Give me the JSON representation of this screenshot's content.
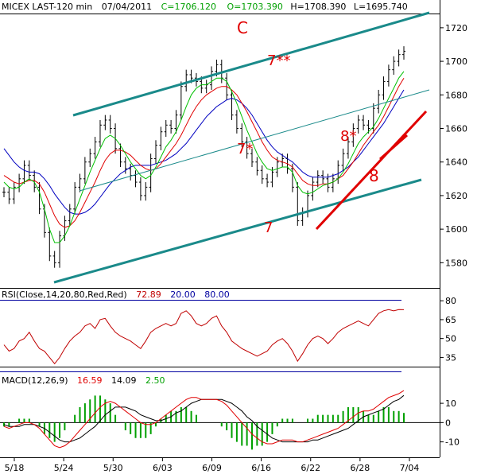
{
  "header": {
    "symbol": "MICEX LAST-120 min",
    "date": "07/04/2011",
    "close": "C=1706.120",
    "open": "O=1703.390",
    "high": "H=1708.390",
    "low": "L=1695.740"
  },
  "rsi_header": {
    "name": "RSI(Close,14,20,80,Red,Red)",
    "value": "72.89",
    "lower": "20.00",
    "upper": "80.00"
  },
  "macd_header": {
    "name": "MACD(12,26,9)",
    "macd": "16.59",
    "signal": "14.09",
    "hist": "2.50"
  },
  "annotations": {
    "c": "C",
    "w7ss": "7**",
    "w7s": "7*",
    "w7": "7",
    "w8s": "8*",
    "w8": "8"
  },
  "colors": {
    "price": "#000000",
    "ma_green": "#00c000",
    "ma_red": "#e00000",
    "ma_blue": "#0000c0",
    "channel": "#1a8a8a",
    "trend_red": "#e00000",
    "rsi_line": "#c00000",
    "rsi_ref": "#0000a0",
    "macd_line": "#000000",
    "macd_signal": "#e00000",
    "macd_hist": "#00a000"
  },
  "chart_data": [
    {
      "type": "line",
      "panel": "price",
      "ylim": [
        1565,
        1728
      ],
      "y_ticks": [
        1580,
        1600,
        1620,
        1640,
        1660,
        1680,
        1700,
        1720
      ],
      "x_labels": [
        "5/18",
        "5/24",
        "5/30",
        "6/03",
        "6/09",
        "6/16",
        "6/22",
        "6/28",
        "7/04"
      ],
      "series": [
        {
          "key": "close",
          "values": [
            1622,
            1618,
            1625,
            1630,
            1638,
            1632,
            1625,
            1612,
            1598,
            1584,
            1580,
            1596,
            1605,
            1612,
            1625,
            1630,
            1640,
            1645,
            1652,
            1662,
            1665,
            1660,
            1648,
            1640,
            1636,
            1632,
            1628,
            1620,
            1625,
            1642,
            1650,
            1658,
            1662,
            1660,
            1668,
            1685,
            1692,
            1690,
            1688,
            1684,
            1686,
            1694,
            1698,
            1690,
            1680,
            1668,
            1660,
            1652,
            1645,
            1640,
            1635,
            1630,
            1628,
            1634,
            1640,
            1642,
            1636,
            1625,
            1605,
            1610,
            1620,
            1628,
            1632,
            1630,
            1625,
            1630,
            1638,
            1645,
            1652,
            1660,
            1665,
            1662,
            1660,
            1672,
            1680,
            1688,
            1695,
            1700,
            1704,
            1706
          ]
        },
        {
          "key": "ma_green",
          "values": [
            1628,
            1625,
            1624,
            1625,
            1628,
            1630,
            1628,
            1622,
            1612,
            1600,
            1592,
            1592,
            1596,
            1602,
            1610,
            1618,
            1626,
            1634,
            1641,
            1648,
            1654,
            1656,
            1654,
            1650,
            1645,
            1640,
            1636,
            1632,
            1630,
            1632,
            1637,
            1643,
            1649,
            1653,
            1658,
            1665,
            1673,
            1680,
            1684,
            1686,
            1686,
            1688,
            1690,
            1690,
            1688,
            1682,
            1675,
            1667,
            1659,
            1652,
            1645,
            1640,
            1636,
            1635,
            1636,
            1637,
            1637,
            1634,
            1626,
            1622,
            1621,
            1622,
            1624,
            1626,
            1627,
            1628,
            1630,
            1634,
            1639,
            1645,
            1651,
            1655,
            1658,
            1661,
            1666,
            1672,
            1678,
            1684,
            1690,
            1694
          ]
        },
        {
          "key": "ma_red",
          "values": [
            1632,
            1630,
            1628,
            1627,
            1628,
            1629,
            1629,
            1627,
            1622,
            1615,
            1608,
            1603,
            1601,
            1602,
            1605,
            1610,
            1616,
            1622,
            1628,
            1635,
            1641,
            1645,
            1647,
            1647,
            1646,
            1644,
            1641,
            1638,
            1636,
            1635,
            1636,
            1639,
            1643,
            1647,
            1651,
            1656,
            1662,
            1668,
            1673,
            1677,
            1680,
            1682,
            1684,
            1685,
            1685,
            1683,
            1680,
            1675,
            1670,
            1664,
            1658,
            1652,
            1647,
            1643,
            1641,
            1640,
            1639,
            1637,
            1633,
            1629,
            1627,
            1626,
            1626,
            1627,
            1627,
            1628,
            1630,
            1632,
            1636,
            1640,
            1645,
            1650,
            1654,
            1658,
            1662,
            1667,
            1673,
            1679,
            1685,
            1690
          ]
        },
        {
          "key": "ma_blue",
          "values": [
            1648,
            1644,
            1640,
            1637,
            1635,
            1634,
            1634,
            1633,
            1630,
            1626,
            1621,
            1617,
            1613,
            1610,
            1609,
            1609,
            1610,
            1612,
            1615,
            1619,
            1623,
            1627,
            1630,
            1633,
            1635,
            1637,
            1638,
            1638,
            1638,
            1638,
            1639,
            1640,
            1641,
            1643,
            1645,
            1648,
            1651,
            1655,
            1659,
            1663,
            1667,
            1670,
            1673,
            1675,
            1677,
            1678,
            1677,
            1675,
            1672,
            1668,
            1663,
            1658,
            1653,
            1649,
            1646,
            1644,
            1642,
            1640,
            1637,
            1634,
            1632,
            1631,
            1631,
            1631,
            1631,
            1632,
            1633,
            1635,
            1637,
            1640,
            1643,
            1647,
            1651,
            1655,
            1659,
            1663,
            1668,
            1673,
            1678,
            1683
          ]
        }
      ]
    },
    {
      "type": "line",
      "panel": "rsi",
      "ylim": [
        22,
        82
      ],
      "y_ticks": [
        35,
        50,
        65,
        80
      ],
      "series": [
        {
          "key": "rsi",
          "values": [
            45,
            40,
            42,
            48,
            50,
            55,
            48,
            42,
            40,
            35,
            30,
            35,
            42,
            48,
            52,
            55,
            60,
            62,
            58,
            65,
            66,
            60,
            55,
            52,
            50,
            48,
            45,
            42,
            48,
            55,
            58,
            60,
            62,
            60,
            62,
            70,
            72,
            68,
            62,
            60,
            62,
            66,
            68,
            60,
            55,
            48,
            45,
            42,
            40,
            38,
            36,
            38,
            40,
            45,
            48,
            50,
            46,
            40,
            32,
            38,
            45,
            50,
            52,
            50,
            46,
            50,
            55,
            58,
            60,
            62,
            64,
            62,
            60,
            65,
            70,
            72,
            73,
            72,
            73,
            72.89
          ]
        }
      ]
    },
    {
      "type": "line",
      "panel": "macd",
      "ylim": [
        -18,
        22
      ],
      "y_ticks": [
        -10,
        0,
        10
      ],
      "series": [
        {
          "key": "macd",
          "values": [
            -2,
            -3,
            -2,
            -1,
            0,
            0,
            -1,
            -3,
            -6,
            -9,
            -12,
            -13,
            -12,
            -10,
            -7,
            -4,
            -1,
            2,
            5,
            8,
            10,
            11,
            10,
            8,
            6,
            4,
            2,
            0,
            -1,
            -1,
            0,
            2,
            4,
            6,
            8,
            10,
            12,
            13,
            13,
            12,
            12,
            12,
            12,
            11,
            9,
            6,
            3,
            0,
            -3,
            -6,
            -8,
            -10,
            -11,
            -11,
            -10,
            -9,
            -9,
            -9,
            -10,
            -10,
            -9,
            -8,
            -7,
            -6,
            -5,
            -4,
            -3,
            -1,
            1,
            3,
            5,
            6,
            6,
            7,
            9,
            11,
            13,
            14,
            15,
            16.59
          ]
        },
        {
          "key": "signal",
          "values": [
            -1,
            -2,
            -2,
            -2,
            -1,
            -1,
            -1,
            -2,
            -3,
            -5,
            -7,
            -9,
            -10,
            -10,
            -9,
            -8,
            -6,
            -4,
            -2,
            1,
            4,
            6,
            8,
            8,
            8,
            7,
            6,
            4,
            3,
            2,
            1,
            1,
            2,
            3,
            5,
            6,
            8,
            10,
            11,
            12,
            12,
            12,
            12,
            12,
            11,
            10,
            8,
            6,
            3,
            1,
            -2,
            -4,
            -6,
            -8,
            -9,
            -10,
            -10,
            -10,
            -10,
            -10,
            -10,
            -9,
            -9,
            -8,
            -7,
            -6,
            -5,
            -4,
            -3,
            -1,
            1,
            3,
            4,
            5,
            6,
            7,
            9,
            11,
            12,
            14.09
          ]
        }
      ]
    }
  ]
}
